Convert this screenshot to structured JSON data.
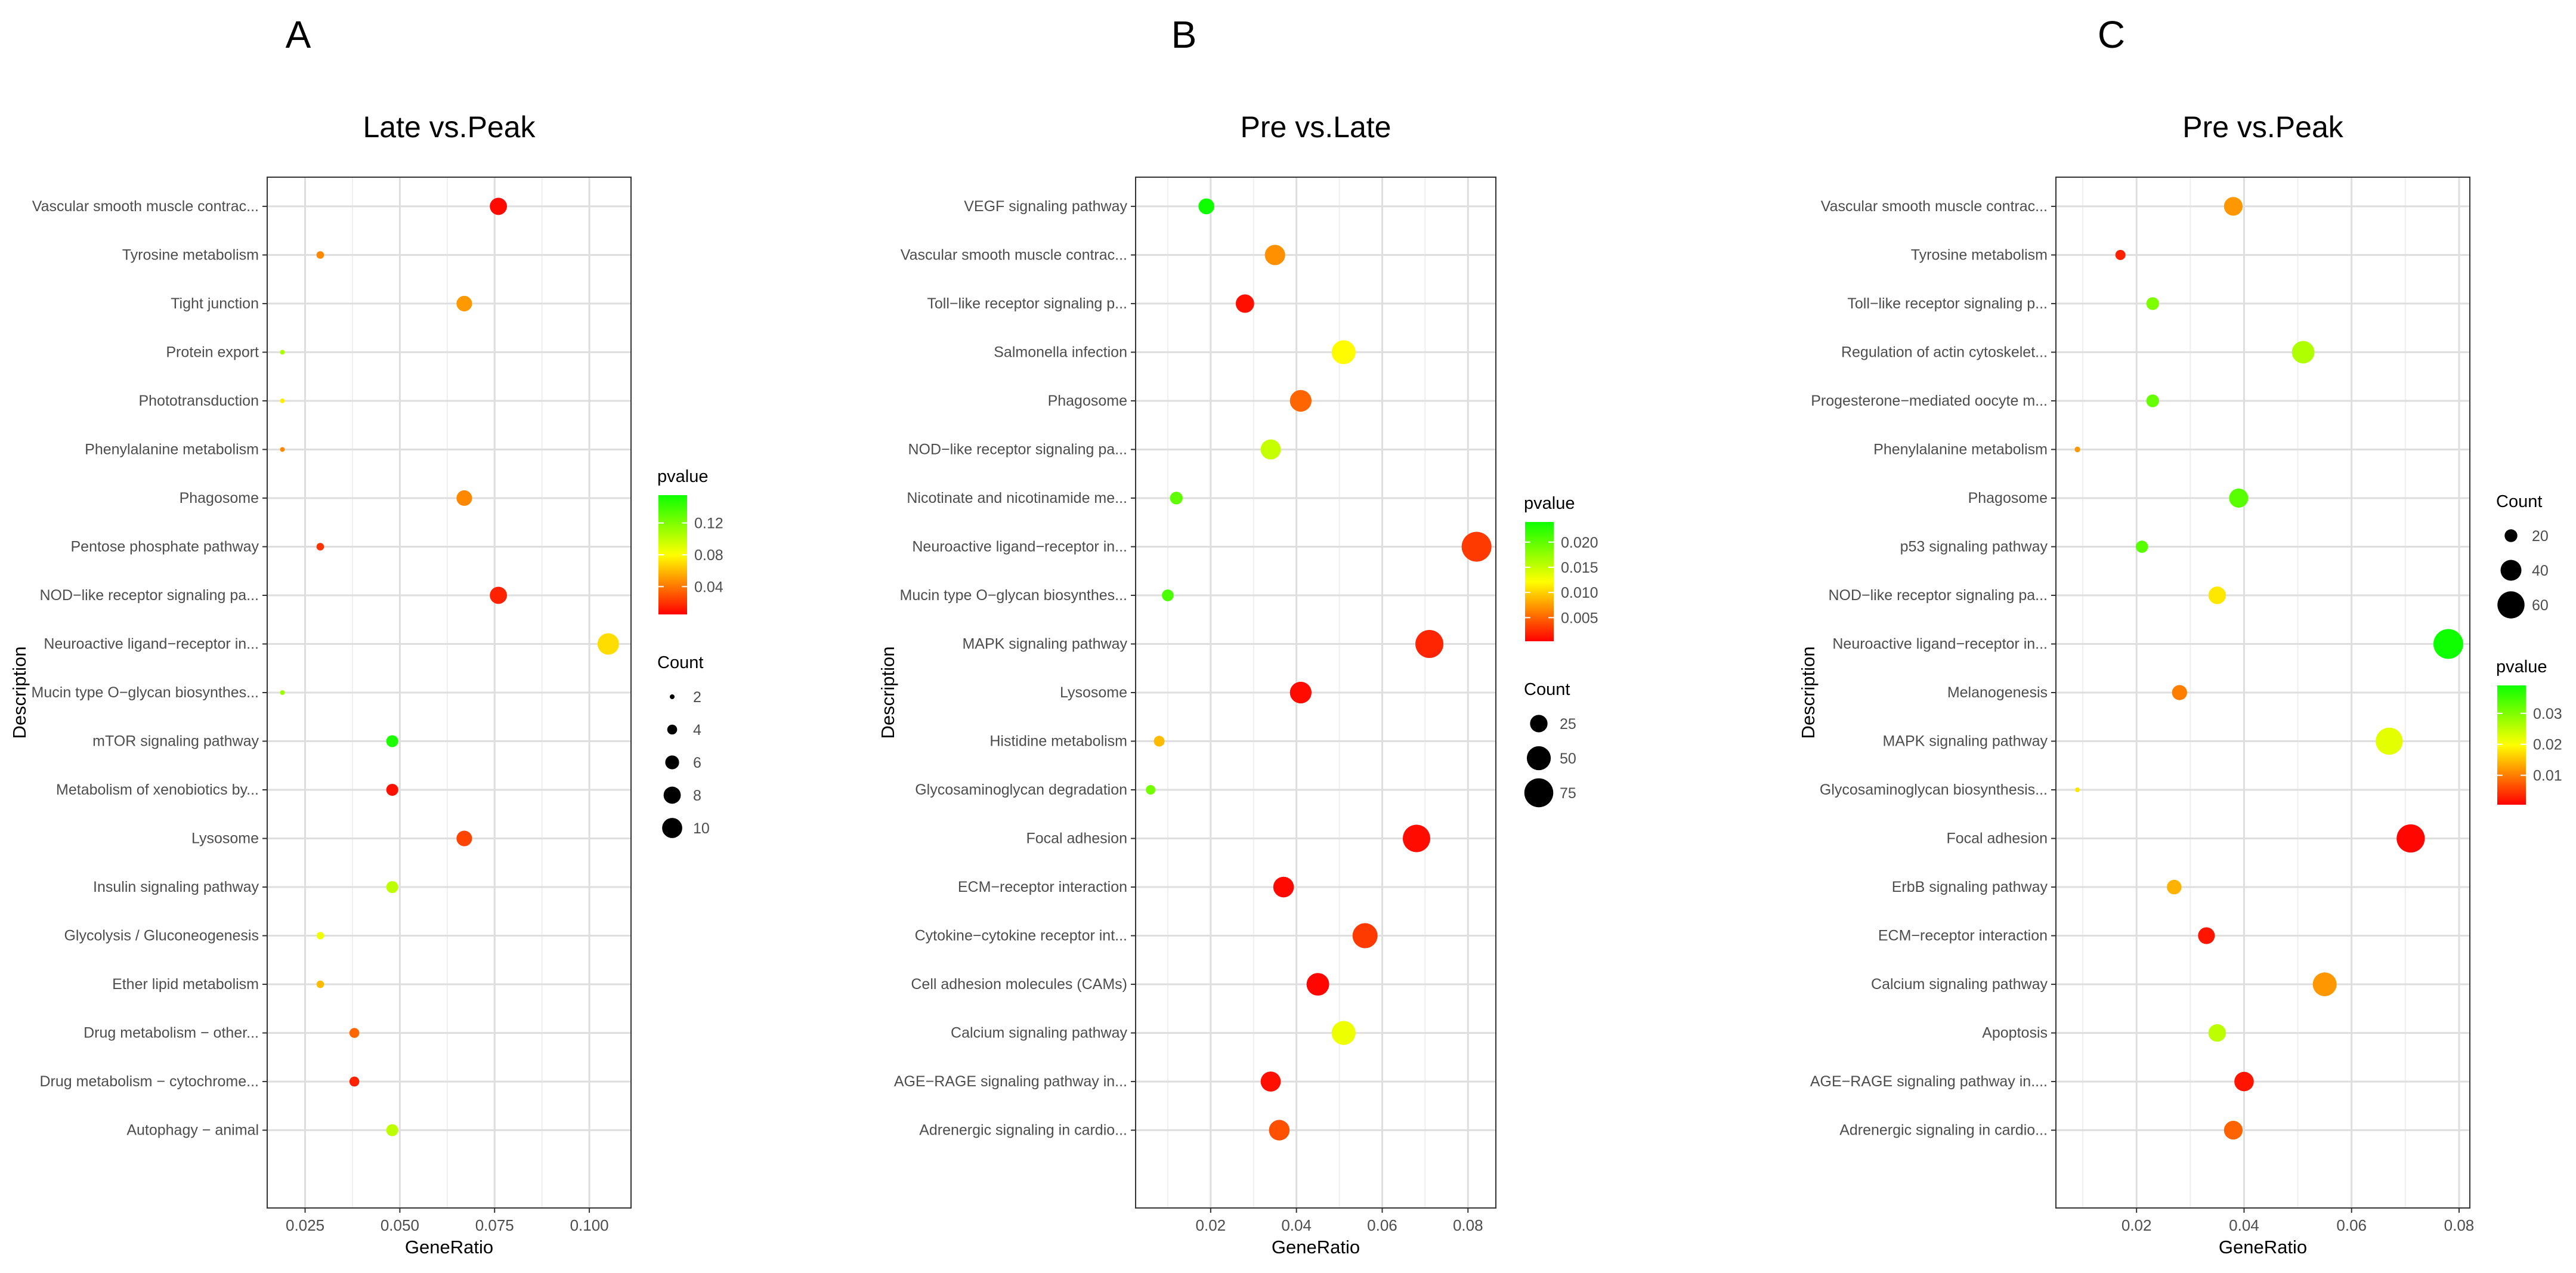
{
  "chart_data": [
    {
      "type": "scatter",
      "panel_letter": "A",
      "title": "Late vs.Peak",
      "xlabel": "GeneRatio",
      "ylabel": "Description",
      "xlim": [
        0.015,
        0.111
      ],
      "xticks": [
        0.025,
        0.05,
        0.075,
        0.1
      ],
      "xtick_labels": [
        "0.025",
        "0.050",
        "0.075",
        "0.100"
      ],
      "grid": true,
      "legend": {
        "order": [
          "color",
          "size"
        ],
        "color": {
          "title": "pvalue",
          "range": [
            0.005,
            0.155
          ],
          "ticks": [
            0.04,
            0.08,
            0.12
          ],
          "tick_labels": [
            "0.04",
            "0.08",
            "0.12"
          ]
        },
        "size": {
          "title": "Count",
          "values": [
            2,
            4,
            6,
            8,
            10
          ],
          "labels": [
            "2",
            "4",
            "6",
            "8",
            "10"
          ]
        }
      },
      "points": [
        {
          "description": "Vascular smooth muscle contrac...",
          "gene_ratio": 0.076,
          "count": 8,
          "pvalue": 0.008
        },
        {
          "description": "Tyrosine metabolism",
          "gene_ratio": 0.029,
          "count": 3,
          "pvalue": 0.045
        },
        {
          "description": "Tight junction",
          "gene_ratio": 0.067,
          "count": 7,
          "pvalue": 0.05
        },
        {
          "description": "Protein export",
          "gene_ratio": 0.019,
          "count": 2,
          "pvalue": 0.105
        },
        {
          "description": "Phototransduction",
          "gene_ratio": 0.019,
          "count": 2,
          "pvalue": 0.075
        },
        {
          "description": "Phenylalanine metabolism",
          "gene_ratio": 0.019,
          "count": 2,
          "pvalue": 0.045
        },
        {
          "description": "Phagosome",
          "gene_ratio": 0.067,
          "count": 7,
          "pvalue": 0.045
        },
        {
          "description": "Pentose phosphate pathway",
          "gene_ratio": 0.029,
          "count": 3,
          "pvalue": 0.02
        },
        {
          "description": "NOD−like receptor signaling pa...",
          "gene_ratio": 0.076,
          "count": 8,
          "pvalue": 0.015
        },
        {
          "description": "Neuroactive ligand−receptor in...",
          "gene_ratio": 0.105,
          "count": 11,
          "pvalue": 0.07
        },
        {
          "description": "Mucin type O−glycan biosynthes...",
          "gene_ratio": 0.019,
          "count": 2,
          "pvalue": 0.11
        },
        {
          "description": "mTOR signaling pathway",
          "gene_ratio": 0.048,
          "count": 5,
          "pvalue": 0.15
        },
        {
          "description": "Metabolism of xenobiotics by...",
          "gene_ratio": 0.048,
          "count": 5,
          "pvalue": 0.01
        },
        {
          "description": "Lysosome",
          "gene_ratio": 0.067,
          "count": 7,
          "pvalue": 0.025
        },
        {
          "description": "Insulin signaling pathway",
          "gene_ratio": 0.048,
          "count": 5,
          "pvalue": 0.1
        },
        {
          "description": "Glycolysis / Gluconeogenesis",
          "gene_ratio": 0.029,
          "count": 3,
          "pvalue": 0.085
        },
        {
          "description": "Ether lipid metabolism",
          "gene_ratio": 0.029,
          "count": 3,
          "pvalue": 0.06
        },
        {
          "description": "Drug metabolism − other...",
          "gene_ratio": 0.038,
          "count": 4,
          "pvalue": 0.035
        },
        {
          "description": "Drug metabolism − cytochrome...",
          "gene_ratio": 0.038,
          "count": 4,
          "pvalue": 0.015
        },
        {
          "description": "Autophagy − animal",
          "gene_ratio": 0.048,
          "count": 5,
          "pvalue": 0.1
        }
      ]
    },
    {
      "type": "scatter",
      "panel_letter": "B",
      "title": "Pre vs.Late",
      "xlabel": "GeneRatio",
      "ylabel": "Description",
      "xlim": [
        0.0025,
        0.0865
      ],
      "xticks": [
        0.02,
        0.04,
        0.06,
        0.08
      ],
      "xtick_labels": [
        "0.02",
        "0.04",
        "0.06",
        "0.08"
      ],
      "grid": true,
      "legend": {
        "order": [
          "color",
          "size"
        ],
        "color": {
          "title": "pvalue",
          "range": [
            0.0003,
            0.024
          ],
          "ticks": [
            0.005,
            0.01,
            0.015,
            0.02
          ],
          "tick_labels": [
            "0.005",
            "0.010",
            "0.015",
            "0.020"
          ]
        },
        "size": {
          "title": "Count",
          "values": [
            25,
            50,
            75
          ],
          "labels": [
            "25",
            "50",
            "75"
          ]
        }
      },
      "points": [
        {
          "description": "VEGF signaling pathway",
          "gene_ratio": 0.019,
          "count": 20,
          "pvalue": 0.024
        },
        {
          "description": "Vascular smooth muscle contrac...",
          "gene_ratio": 0.035,
          "count": 35,
          "pvalue": 0.007
        },
        {
          "description": "Toll−like receptor signaling p...",
          "gene_ratio": 0.028,
          "count": 28,
          "pvalue": 0.001
        },
        {
          "description": "Salmonella infection",
          "gene_ratio": 0.051,
          "count": 50,
          "pvalue": 0.012
        },
        {
          "description": "Phagosome",
          "gene_ratio": 0.041,
          "count": 40,
          "pvalue": 0.005
        },
        {
          "description": "NOD−like receptor signaling pa...",
          "gene_ratio": 0.034,
          "count": 34,
          "pvalue": 0.015
        },
        {
          "description": "Nicotinate and nicotinamide me...",
          "gene_ratio": 0.012,
          "count": 12,
          "pvalue": 0.02
        },
        {
          "description": "Neuroactive ligand−receptor in...",
          "gene_ratio": 0.082,
          "count": 80,
          "pvalue": 0.003
        },
        {
          "description": "Mucin type O−glycan biosynthes...",
          "gene_ratio": 0.01,
          "count": 10,
          "pvalue": 0.021
        },
        {
          "description": "MAPK signaling pathway",
          "gene_ratio": 0.071,
          "count": 70,
          "pvalue": 0.002
        },
        {
          "description": "Lysosome",
          "gene_ratio": 0.041,
          "count": 40,
          "pvalue": 0.0008
        },
        {
          "description": "Histidine metabolism",
          "gene_ratio": 0.008,
          "count": 8,
          "pvalue": 0.009
        },
        {
          "description": "Glycosaminoglycan degradation",
          "gene_ratio": 0.006,
          "count": 6,
          "pvalue": 0.019
        },
        {
          "description": "Focal adhesion",
          "gene_ratio": 0.068,
          "count": 67,
          "pvalue": 0.0008
        },
        {
          "description": "ECM−receptor interaction",
          "gene_ratio": 0.037,
          "count": 36,
          "pvalue": 0.0007
        },
        {
          "description": "Cytokine−cytokine receptor int...",
          "gene_ratio": 0.056,
          "count": 55,
          "pvalue": 0.003
        },
        {
          "description": "Cell adhesion molecules (CAMs)",
          "gene_ratio": 0.045,
          "count": 44,
          "pvalue": 0.0006
        },
        {
          "description": "Calcium signaling pathway",
          "gene_ratio": 0.051,
          "count": 50,
          "pvalue": 0.013
        },
        {
          "description": "AGE−RAGE signaling pathway in...",
          "gene_ratio": 0.034,
          "count": 34,
          "pvalue": 0.001
        },
        {
          "description": "Adrenergic signaling in cardio...",
          "gene_ratio": 0.036,
          "count": 36,
          "pvalue": 0.004
        }
      ]
    },
    {
      "type": "scatter",
      "panel_letter": "C",
      "title": "Pre vs.Peak",
      "xlabel": "GeneRatio",
      "ylabel": "Description",
      "xlim": [
        0.005,
        0.082
      ],
      "xticks": [
        0.02,
        0.04,
        0.06,
        0.08
      ],
      "xtick_labels": [
        "0.02",
        "0.04",
        "0.06",
        "0.08"
      ],
      "grid": true,
      "legend": {
        "order": [
          "size",
          "color"
        ],
        "color": {
          "title": "pvalue",
          "range": [
            0.0005,
            0.039
          ],
          "ticks": [
            0.01,
            0.02,
            0.03
          ],
          "tick_labels": [
            "0.01",
            "0.02",
            "0.03"
          ]
        },
        "size": {
          "title": "Count",
          "values": [
            20,
            40,
            60
          ],
          "labels": [
            "20",
            "40",
            "60"
          ]
        }
      },
      "points": [
        {
          "description": "Vascular smooth muscle contrac...",
          "gene_ratio": 0.038,
          "count": 34,
          "pvalue": 0.012
        },
        {
          "description": "Tyrosine metabolism",
          "gene_ratio": 0.017,
          "count": 15,
          "pvalue": 0.003
        },
        {
          "description": "Toll−like receptor signaling p...",
          "gene_ratio": 0.023,
          "count": 20,
          "pvalue": 0.03
        },
        {
          "description": "Regulation of actin cytoskelet...",
          "gene_ratio": 0.051,
          "count": 45,
          "pvalue": 0.026
        },
        {
          "description": "Progesterone−mediated oocyte m...",
          "gene_ratio": 0.023,
          "count": 20,
          "pvalue": 0.032
        },
        {
          "description": "Phenylalanine metabolism",
          "gene_ratio": 0.009,
          "count": 8,
          "pvalue": 0.012
        },
        {
          "description": "Phagosome",
          "gene_ratio": 0.039,
          "count": 35,
          "pvalue": 0.033
        },
        {
          "description": "p53 signaling pathway",
          "gene_ratio": 0.021,
          "count": 19,
          "pvalue": 0.033
        },
        {
          "description": "NOD−like receptor signaling pa...",
          "gene_ratio": 0.035,
          "count": 31,
          "pvalue": 0.018
        },
        {
          "description": "Neuroactive ligand−receptor in...",
          "gene_ratio": 0.078,
          "count": 70,
          "pvalue": 0.039
        },
        {
          "description": "Melanogenesis",
          "gene_ratio": 0.028,
          "count": 25,
          "pvalue": 0.01
        },
        {
          "description": "MAPK signaling pathway",
          "gene_ratio": 0.067,
          "count": 60,
          "pvalue": 0.022
        },
        {
          "description": "Glycosaminoglycan biosynthesis...",
          "gene_ratio": 0.009,
          "count": 7,
          "pvalue": 0.018
        },
        {
          "description": "Focal adhesion",
          "gene_ratio": 0.071,
          "count": 64,
          "pvalue": 0.001
        },
        {
          "description": "ErbB signaling pathway",
          "gene_ratio": 0.027,
          "count": 24,
          "pvalue": 0.014
        },
        {
          "description": "ECM−receptor interaction",
          "gene_ratio": 0.033,
          "count": 29,
          "pvalue": 0.002
        },
        {
          "description": "Calcium signaling pathway",
          "gene_ratio": 0.055,
          "count": 49,
          "pvalue": 0.012
        },
        {
          "description": "Apoptosis",
          "gene_ratio": 0.035,
          "count": 31,
          "pvalue": 0.025
        },
        {
          "description": "AGE−RAGE signaling pathway in....",
          "gene_ratio": 0.04,
          "count": 36,
          "pvalue": 0.002
        },
        {
          "description": "Adrenergic signaling in cardio...",
          "gene_ratio": 0.038,
          "count": 34,
          "pvalue": 0.008
        }
      ]
    }
  ]
}
